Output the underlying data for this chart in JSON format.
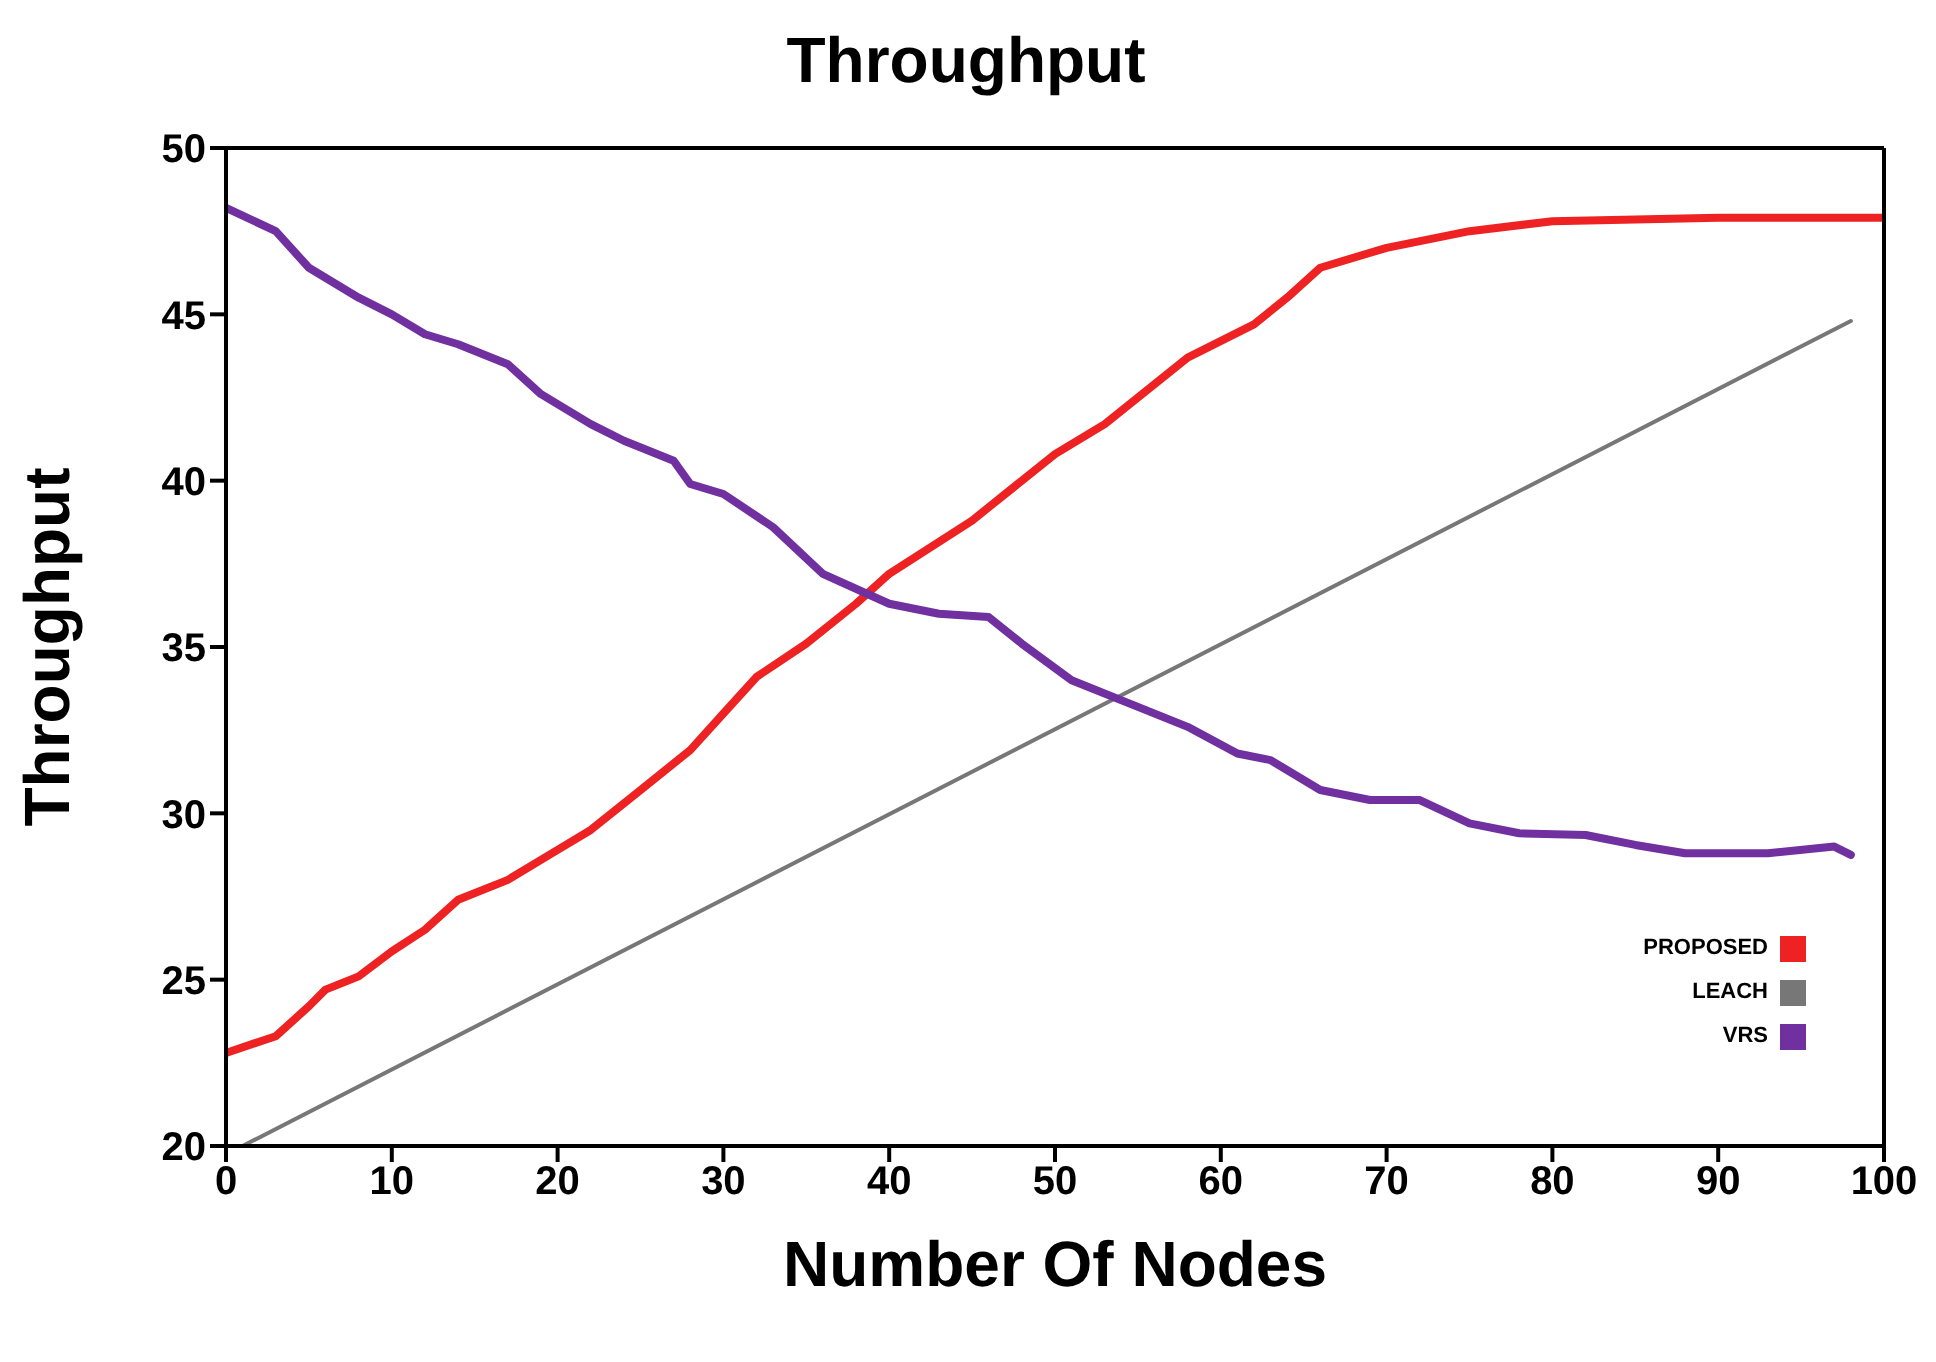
{
  "chart_data": {
    "type": "line",
    "title": "Throughput",
    "xlabel": "Number Of Nodes",
    "ylabel": "Throughput",
    "xlim": [
      0,
      100
    ],
    "xticks": [
      0,
      10,
      20,
      30,
      40,
      50,
      60,
      70,
      80,
      90,
      100
    ],
    "ylim": [
      20,
      50
    ],
    "yticks": [
      20,
      25,
      30,
      35,
      40,
      45,
      50
    ],
    "grid": false,
    "legend": "bottom right",
    "marker": "none",
    "series": [
      {
        "name": "PROPOSED",
        "color": "#ee2222",
        "x": [
          0,
          3,
          5,
          6,
          8,
          10,
          12,
          14,
          17,
          20,
          22,
          25,
          28,
          30,
          32,
          35,
          38,
          40,
          45,
          50,
          53,
          58,
          62,
          64,
          66,
          70,
          75,
          80,
          90,
          100
        ],
        "values": [
          22.8,
          23.3,
          24.2,
          24.7,
          25.1,
          25.85,
          26.5,
          27.4,
          28.0,
          28.9,
          29.5,
          30.7,
          31.9,
          33.0,
          34.1,
          35.1,
          36.3,
          37.2,
          38.8,
          40.8,
          41.7,
          43.7,
          44.7,
          45.5,
          46.4,
          47.0,
          47.5,
          47.8,
          47.9,
          47.9
        ]
      },
      {
        "name": "LEACH",
        "color": "#777777",
        "x": [
          1,
          98
        ],
        "values": [
          20,
          44.8
        ]
      },
      {
        "name": "VRS",
        "color": "#7030a0",
        "x": [
          0,
          3,
          5,
          8,
          10,
          12,
          14,
          17,
          19,
          22,
          24,
          27,
          28,
          30,
          33,
          36,
          40,
          43,
          46,
          48,
          51,
          55,
          58,
          61,
          63,
          66,
          69,
          72,
          75,
          78,
          82,
          85,
          88,
          93,
          97,
          98
        ],
        "values": [
          48.2,
          47.5,
          46.4,
          45.5,
          45.0,
          44.4,
          44.1,
          43.5,
          42.6,
          41.7,
          41.2,
          40.6,
          39.9,
          39.6,
          38.6,
          37.2,
          36.3,
          36.0,
          35.9,
          35.1,
          34.0,
          33.2,
          32.6,
          31.8,
          31.6,
          30.7,
          30.4,
          30.4,
          29.7,
          29.4,
          29.35,
          29.05,
          28.8,
          28.8,
          29.0,
          28.75
        ]
      }
    ]
  }
}
